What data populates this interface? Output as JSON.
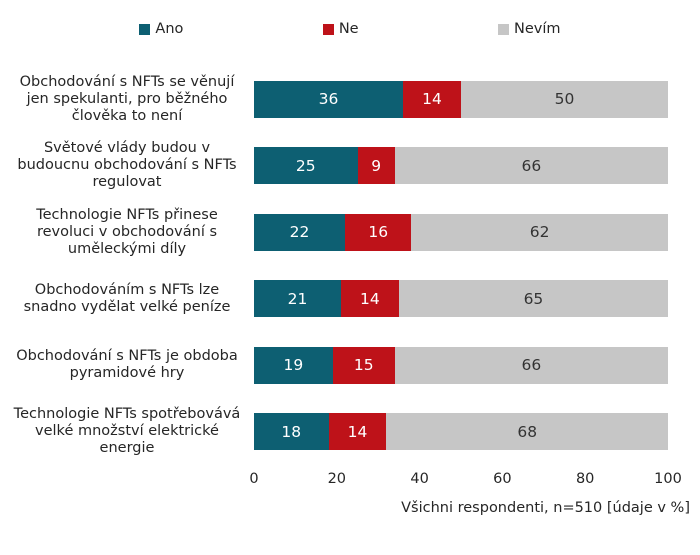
{
  "chart_data": {
    "type": "bar",
    "orientation": "horizontal",
    "stacked": true,
    "grid": false,
    "legend_position": "top",
    "legend": [
      "Ano",
      "Ne",
      "Nevím"
    ],
    "colors": {
      "ano": "#0d5f72",
      "ne": "#be1219",
      "nevim": "#c6c6c6"
    },
    "categories": [
      "Obchodování s NFTs se věnují jen spekulanti, pro běžného člověka to není",
      "Světové vlády budou v budoucnu obchodování s NFTs regulovat",
      "Technologie NFTs přinese revoluci v obchodování s uměleckými díly",
      "Obchodováním s NFTs lze snadno vydělat velké peníze",
      "Obchodování s NFTs je obdoba pyramidové hry",
      "Technologie NFTs spotřebovává velké množství elektrické energie"
    ],
    "series": [
      {
        "name": "Ano",
        "values": [
          36,
          25,
          22,
          21,
          19,
          18
        ]
      },
      {
        "name": "Ne",
        "values": [
          14,
          9,
          16,
          14,
          15,
          14
        ]
      },
      {
        "name": "Nevím",
        "values": [
          50,
          66,
          62,
          65,
          66,
          68
        ]
      }
    ],
    "xlim": [
      0,
      100
    ],
    "x_ticks": [
      "0",
      "20",
      "40",
      "60",
      "80",
      "100"
    ],
    "xlabel": "",
    "ylabel": "",
    "title": "",
    "caption": "Všichni respondenti, n=510 [údaje v %]"
  }
}
